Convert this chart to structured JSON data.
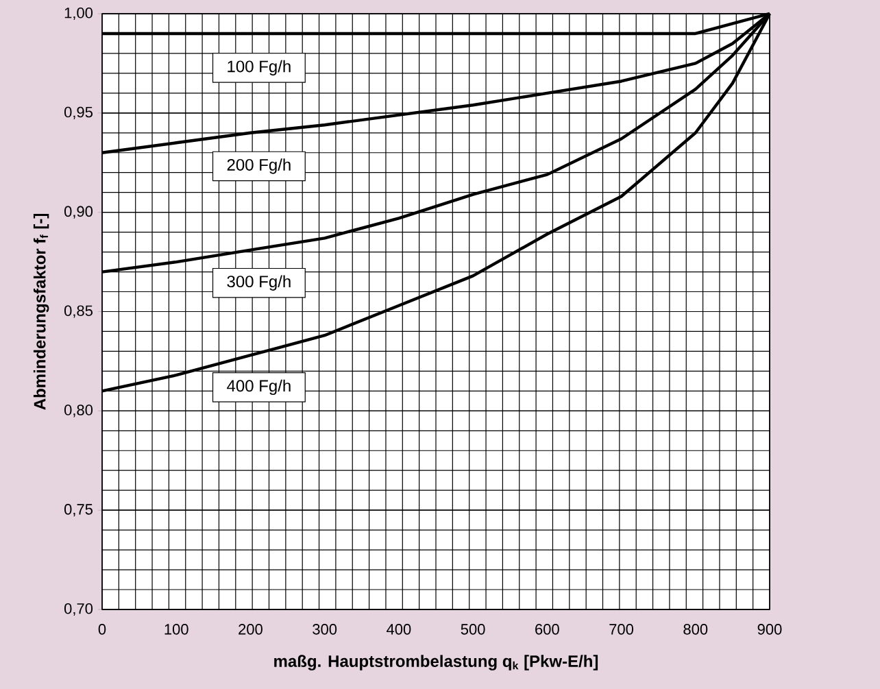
{
  "chart_data": {
    "type": "line",
    "xlabel": "maßg. Hauptstrombelastung q$_{k}$ [Pkw-E/h]",
    "ylabel": "Abminderungsfaktor f$_{f}$ [-]",
    "xlim": [
      0,
      900
    ],
    "ylim": [
      0.7,
      1.0
    ],
    "xticks": [
      0,
      100,
      200,
      300,
      400,
      500,
      600,
      700,
      800,
      900
    ],
    "yticks": [
      {
        "value": 0.7,
        "label": "0,70"
      },
      {
        "value": 0.75,
        "label": "0,75"
      },
      {
        "value": 0.8,
        "label": "0,80"
      },
      {
        "value": 0.85,
        "label": "0,85"
      },
      {
        "value": 0.9,
        "label": "0,90"
      },
      {
        "value": 0.95,
        "label": "0,95"
      },
      {
        "value": 1.0,
        "label": "1,00"
      }
    ],
    "grid": true,
    "x": [
      0,
      100,
      200,
      300,
      400,
      500,
      600,
      700,
      800,
      850,
      900
    ],
    "series": [
      {
        "name": "100 Fg/h",
        "color": "#000000",
        "values": [
          0.99,
          0.99,
          0.99,
          0.99,
          0.99,
          0.99,
          0.99,
          0.99,
          0.99,
          0.995,
          1.0
        ]
      },
      {
        "name": "200 Fg/h",
        "color": "#000000",
        "values": [
          0.93,
          0.935,
          0.94,
          0.944,
          0.949,
          0.954,
          0.96,
          0.966,
          0.975,
          0.985,
          1.0
        ]
      },
      {
        "name": "300 Fg/h",
        "color": "#000000",
        "values": [
          0.87,
          0.875,
          0.881,
          0.887,
          0.897,
          0.909,
          0.919,
          0.937,
          0.962,
          0.979,
          1.0
        ]
      },
      {
        "name": "400 Fg/h",
        "color": "#000000",
        "values": [
          0.81,
          0.818,
          0.828,
          0.838,
          0.853,
          0.868,
          0.889,
          0.908,
          0.94,
          0.965,
          1.0
        ]
      }
    ]
  }
}
